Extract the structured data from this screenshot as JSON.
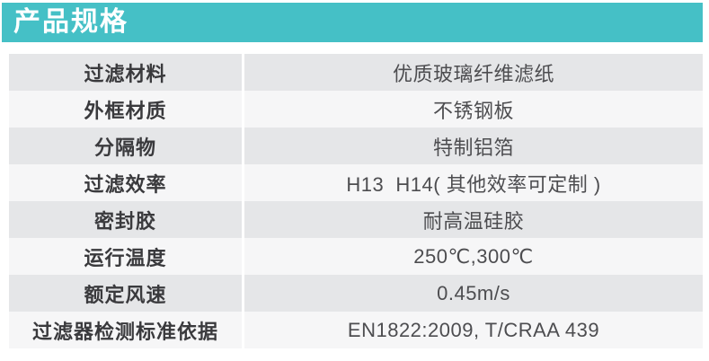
{
  "header": {
    "title": "产品规格"
  },
  "table": {
    "rows": [
      {
        "label": "过滤材料",
        "value": "优质玻璃纤维滤纸"
      },
      {
        "label": "外框材质",
        "value": "不锈钢板"
      },
      {
        "label": "分隔物",
        "value": "特制铝箔"
      },
      {
        "label": "过滤效率",
        "value": "H13  H14( 其他效率可定制 )"
      },
      {
        "label": "密封胶",
        "value": "耐高温硅胶"
      },
      {
        "label": "运行温度",
        "value": "250℃,300℃"
      },
      {
        "label": "额定风速",
        "value": "0.45m/s"
      },
      {
        "label": "过滤器检测标准依据",
        "value": "EN1822:2009, T/CRAA 439"
      }
    ]
  },
  "colors": {
    "accent_teal": "#45c0c6",
    "row_gray": "#e5e6e8",
    "row_light": "#f6f6f7",
    "label_text": "#3a3a3d",
    "value_text": "#4d4d50",
    "header_text": "#ffffff"
  }
}
